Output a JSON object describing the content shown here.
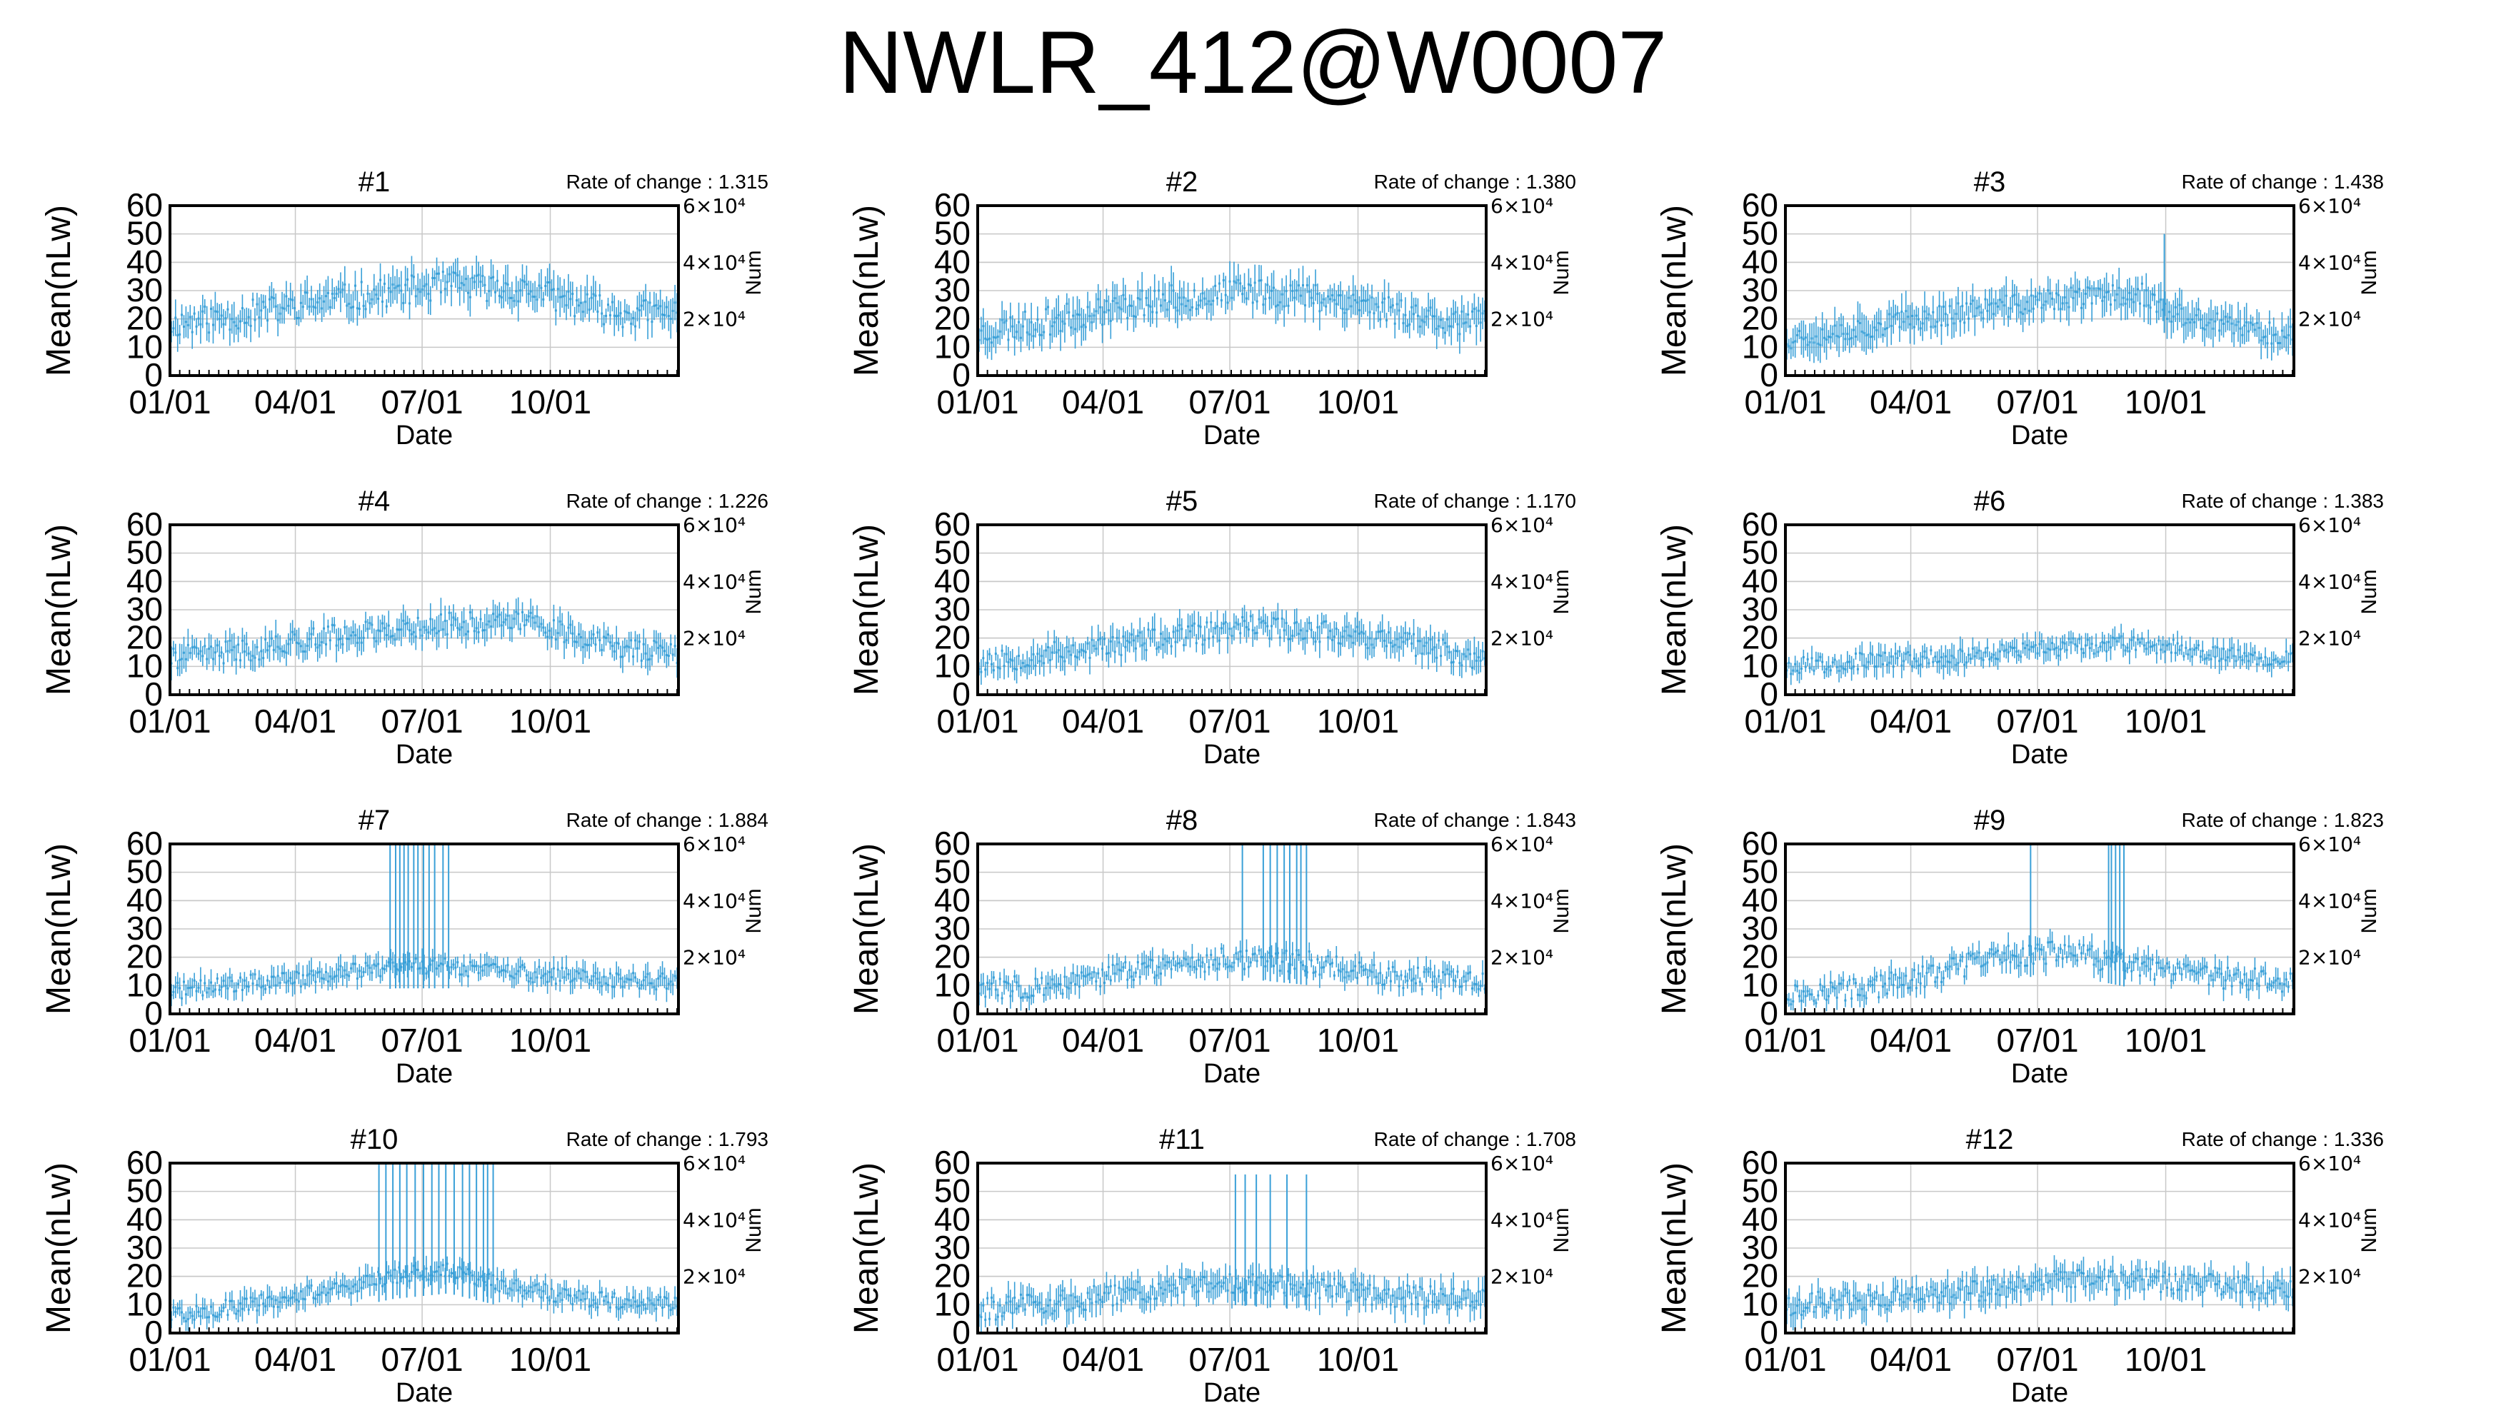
{
  "title": "NWLR_412@W0007",
  "common": {
    "ylabel": "Mean(nLw)",
    "xlabel": "Date",
    "y2label": "Num",
    "ylim": [
      0,
      60
    ],
    "yticks": [
      "0",
      "10",
      "20",
      "30",
      "40",
      "50",
      "60"
    ],
    "y2ticks": [
      "2×10⁴",
      "4×10⁴",
      "6×10⁴"
    ],
    "y2tick_values": [
      20000,
      40000,
      60000
    ],
    "y2lim": [
      0,
      60000
    ],
    "xticks": [
      "01/01",
      "04/01",
      "07/01",
      "10/01"
    ],
    "xtick_days": [
      0,
      90,
      181,
      273
    ],
    "xrange_days": [
      0,
      365
    ],
    "rate_prefix": "Rate of change : ",
    "series_color": "#3aa0d8",
    "grid": true
  },
  "chart_data": [
    {
      "type": "line",
      "panel": "#1",
      "rate": "1.315",
      "profile": [
        [
          0,
          18
        ],
        [
          60,
          22
        ],
        [
          120,
          27
        ],
        [
          200,
          32
        ],
        [
          260,
          30
        ],
        [
          320,
          22
        ],
        [
          365,
          22
        ]
      ],
      "spread": 6,
      "noise": 5,
      "spike_days": [],
      "spike_level": 0,
      "seed": 11
    },
    {
      "type": "line",
      "panel": "#2",
      "rate": "1.380",
      "profile": [
        [
          0,
          15
        ],
        [
          60,
          20
        ],
        [
          120,
          26
        ],
        [
          200,
          30
        ],
        [
          260,
          27
        ],
        [
          320,
          21
        ],
        [
          365,
          18
        ]
      ],
      "spread": 6,
      "noise": 5,
      "spike_days": [],
      "spike_level": 0,
      "seed": 23
    },
    {
      "type": "line",
      "panel": "#3",
      "rate": "1.438",
      "profile": [
        [
          0,
          13
        ],
        [
          60,
          17
        ],
        [
          120,
          22
        ],
        [
          200,
          27
        ],
        [
          255,
          29
        ],
        [
          275,
          22
        ],
        [
          320,
          17
        ],
        [
          365,
          14
        ]
      ],
      "spread": 6,
      "noise": 4,
      "spike_days": [
        272
      ],
      "spike_level": 50,
      "seed": 37
    },
    {
      "type": "line",
      "panel": "#4",
      "rate": "1.226",
      "profile": [
        [
          0,
          13
        ],
        [
          60,
          16
        ],
        [
          120,
          21
        ],
        [
          200,
          25
        ],
        [
          260,
          26
        ],
        [
          310,
          18
        ],
        [
          365,
          14
        ]
      ],
      "spread": 5,
      "noise": 4,
      "spike_days": [],
      "spike_level": 0,
      "seed": 41
    },
    {
      "type": "line",
      "panel": "#5",
      "rate": "1.170",
      "profile": [
        [
          0,
          11
        ],
        [
          60,
          15
        ],
        [
          120,
          19
        ],
        [
          200,
          24
        ],
        [
          260,
          22
        ],
        [
          320,
          17
        ],
        [
          365,
          12
        ]
      ],
      "spread": 5,
      "noise": 4,
      "spike_days": [],
      "spike_level": 0,
      "seed": 53
    },
    {
      "type": "line",
      "panel": "#6",
      "rate": "1.383",
      "profile": [
        [
          0,
          10
        ],
        [
          60,
          12
        ],
        [
          120,
          13
        ],
        [
          200,
          17
        ],
        [
          260,
          18
        ],
        [
          320,
          14
        ],
        [
          365,
          12
        ]
      ],
      "spread": 4,
      "noise": 3,
      "spike_days": [],
      "spike_level": 0,
      "seed": 67
    },
    {
      "type": "line",
      "panel": "#7",
      "rate": "1.884",
      "profile": [
        [
          0,
          8
        ],
        [
          60,
          11
        ],
        [
          120,
          14
        ],
        [
          160,
          17
        ],
        [
          200,
          17
        ],
        [
          260,
          14
        ],
        [
          320,
          12
        ],
        [
          365,
          11
        ]
      ],
      "spread": 4,
      "noise": 3,
      "spike_days": [
        158,
        162,
        165,
        168,
        171,
        175,
        178,
        182,
        186,
        190,
        196,
        200
      ],
      "spike_level": 60,
      "seed": 71
    },
    {
      "type": "line",
      "panel": "#8",
      "rate": "1.843",
      "profile": [
        [
          0,
          9
        ],
        [
          60,
          10
        ],
        [
          100,
          14
        ],
        [
          140,
          18
        ],
        [
          200,
          20
        ],
        [
          240,
          18
        ],
        [
          280,
          14
        ],
        [
          365,
          11
        ]
      ],
      "spread": 4,
      "noise": 4,
      "spike_days": [
        190,
        205,
        210,
        215,
        220,
        224,
        229,
        232,
        236
      ],
      "spike_level": 60,
      "seed": 83
    },
    {
      "type": "line",
      "panel": "#9",
      "rate": "1.823",
      "profile": [
        [
          0,
          7
        ],
        [
          60,
          9
        ],
        [
          100,
          13
        ],
        [
          150,
          20
        ],
        [
          200,
          22
        ],
        [
          240,
          18
        ],
        [
          280,
          14
        ],
        [
          365,
          11
        ]
      ],
      "spread": 4,
      "noise": 4,
      "spike_days": [
        176,
        232,
        234,
        237,
        240,
        243
      ],
      "spike_level": 60,
      "seed": 97
    },
    {
      "type": "line",
      "panel": "#10",
      "rate": "1.793",
      "profile": [
        [
          0,
          6
        ],
        [
          60,
          10
        ],
        [
          120,
          16
        ],
        [
          160,
          20
        ],
        [
          200,
          22
        ],
        [
          250,
          16
        ],
        [
          300,
          12
        ],
        [
          365,
          10
        ]
      ],
      "spread": 4,
      "noise": 3,
      "spike_days": [
        150,
        155,
        160,
        165,
        170,
        176,
        182,
        188,
        193,
        198,
        204,
        210,
        215,
        220,
        225,
        228,
        232
      ],
      "spike_level": 60,
      "seed": 101
    },
    {
      "type": "line",
      "panel": "#11",
      "rate": "1.708",
      "profile": [
        [
          0,
          8
        ],
        [
          60,
          11
        ],
        [
          120,
          15
        ],
        [
          180,
          18
        ],
        [
          240,
          16
        ],
        [
          300,
          13
        ],
        [
          365,
          12
        ]
      ],
      "spread": 5,
      "noise": 4,
      "spike_days": [
        185,
        192,
        200,
        210,
        222,
        236
      ],
      "spike_level": 56,
      "seed": 113
    },
    {
      "type": "line",
      "panel": "#12",
      "rate": "1.336",
      "profile": [
        [
          0,
          10
        ],
        [
          60,
          12
        ],
        [
          120,
          14
        ],
        [
          180,
          18
        ],
        [
          250,
          19
        ],
        [
          300,
          17
        ],
        [
          365,
          15
        ]
      ],
      "spread": 5,
      "noise": 4,
      "spike_days": [],
      "spike_level": 0,
      "seed": 127
    }
  ]
}
